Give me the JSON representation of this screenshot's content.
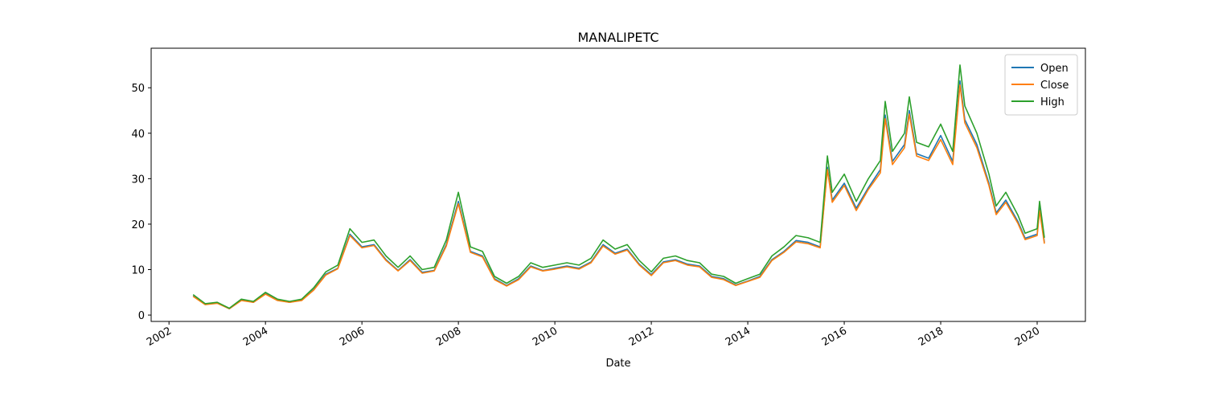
{
  "chart_data": {
    "type": "line",
    "title": "MANALIPETC",
    "x_label": "Date",
    "x": [
      2002.5,
      2002.75,
      2003.0,
      2003.25,
      2003.5,
      2003.75,
      2004.0,
      2004.25,
      2004.5,
      2004.75,
      2005.0,
      2005.25,
      2005.5,
      2005.75,
      2006.0,
      2006.25,
      2006.5,
      2006.75,
      2007.0,
      2007.25,
      2007.5,
      2007.75,
      2008.0,
      2008.25,
      2008.5,
      2008.75,
      2009.0,
      2009.25,
      2009.5,
      2009.75,
      2010.0,
      2010.25,
      2010.5,
      2010.75,
      2011.0,
      2011.25,
      2011.5,
      2011.75,
      2012.0,
      2012.25,
      2012.5,
      2012.75,
      2013.0,
      2013.25,
      2013.5,
      2013.75,
      2014.0,
      2014.25,
      2014.5,
      2014.75,
      2015.0,
      2015.25,
      2015.5,
      2015.65,
      2015.75,
      2016.0,
      2016.25,
      2016.5,
      2016.75,
      2016.85,
      2017.0,
      2017.25,
      2017.35,
      2017.5,
      2017.75,
      2018.0,
      2018.25,
      2018.4,
      2018.5,
      2018.75,
      2019.0,
      2019.15,
      2019.35,
      2019.6,
      2019.75,
      2020.0,
      2020.05,
      2020.15
    ],
    "series": [
      {
        "name": "Open",
        "color": "#1f77b4",
        "values": [
          4.2,
          2.4,
          2.7,
          1.4,
          3.3,
          2.8,
          4.7,
          3.3,
          2.8,
          3.3,
          5.6,
          9.0,
          10.3,
          17.8,
          15.0,
          15.5,
          12.2,
          9.8,
          12.2,
          9.4,
          9.8,
          15.5,
          25.0,
          14.0,
          13.0,
          8.0,
          6.5,
          8.0,
          10.8,
          9.8,
          10.3,
          10.8,
          10.3,
          11.7,
          15.5,
          13.6,
          14.5,
          11.2,
          8.9,
          11.7,
          12.2,
          11.2,
          10.8,
          8.5,
          8.0,
          6.6,
          7.5,
          8.5,
          12.2,
          14.0,
          16.4,
          16.0,
          15.0,
          32.5,
          25.3,
          29.0,
          23.5,
          28.0,
          32.0,
          44.0,
          33.8,
          37.5,
          45.0,
          35.5,
          34.5,
          39.5,
          33.8,
          51.5,
          43.0,
          37.5,
          29.0,
          22.5,
          25.3,
          20.6,
          16.9,
          17.8,
          23.5,
          16.0
        ]
      },
      {
        "name": "Close",
        "color": "#ff7f0e",
        "values": [
          4.1,
          2.3,
          2.6,
          1.4,
          3.2,
          2.8,
          4.6,
          3.2,
          2.8,
          3.2,
          5.5,
          8.8,
          10.2,
          17.5,
          14.8,
          15.3,
          12.0,
          9.7,
          12.0,
          9.2,
          9.7,
          15.2,
          24.5,
          13.8,
          12.8,
          7.8,
          6.4,
          7.8,
          10.6,
          9.7,
          10.1,
          10.6,
          10.1,
          11.5,
          15.2,
          13.4,
          14.3,
          11.0,
          8.7,
          11.5,
          12.0,
          11.0,
          10.6,
          8.3,
          7.8,
          6.5,
          7.4,
          8.3,
          12.0,
          13.8,
          16.1,
          15.7,
          14.8,
          32.0,
          24.8,
          28.5,
          23.0,
          27.6,
          31.3,
          43.2,
          33.1,
          36.8,
          44.2,
          35.0,
          34.0,
          38.6,
          33.1,
          50.6,
          42.3,
          36.8,
          28.5,
          22.1,
          24.8,
          20.2,
          16.6,
          17.5,
          23.0,
          15.7
        ]
      },
      {
        "name": "High",
        "color": "#2ca02c",
        "values": [
          4.5,
          2.5,
          2.8,
          1.5,
          3.5,
          3.0,
          5.0,
          3.5,
          3.0,
          3.5,
          6.0,
          9.5,
          11.0,
          19.0,
          16.0,
          16.5,
          13.0,
          10.5,
          13.0,
          10.0,
          10.5,
          16.5,
          27.0,
          15.0,
          14.0,
          8.5,
          7.0,
          8.5,
          11.5,
          10.5,
          11.0,
          11.5,
          11.0,
          12.5,
          16.5,
          14.5,
          15.5,
          12.0,
          9.5,
          12.5,
          13.0,
          12.0,
          11.5,
          9.0,
          8.5,
          7.0,
          8.0,
          9.0,
          13.0,
          15.0,
          17.5,
          17.0,
          16.0,
          35.0,
          27.0,
          31.0,
          25.0,
          30.0,
          34.0,
          47.0,
          36.0,
          40.0,
          48.0,
          38.0,
          37.0,
          42.0,
          36.0,
          55.0,
          46.0,
          40.0,
          31.0,
          24.0,
          27.0,
          22.0,
          18.0,
          19.0,
          25.0,
          17.0
        ]
      }
    ],
    "xlim": [
      2001.63,
      2021.0
    ],
    "xticks": [
      2002,
      2004,
      2006,
      2008,
      2010,
      2012,
      2014,
      2016,
      2018,
      2020
    ],
    "ylim": [
      -1.4,
      58.7
    ],
    "yticks": [
      0,
      10,
      20,
      30,
      40,
      50
    ],
    "legend": "upper right"
  }
}
